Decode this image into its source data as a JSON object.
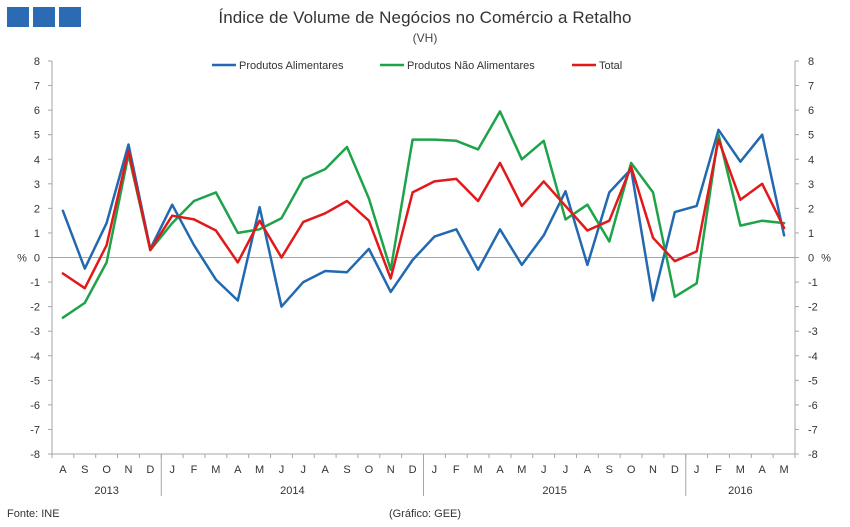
{
  "header": {
    "title": "Índice de Volume de Negócios no Comércio a Retalho",
    "subtitle": "(VH)"
  },
  "logo_colors": [
    "#2a6bb4",
    "#2a6bb4",
    "#2a6bb4"
  ],
  "footer": {
    "source": "Fonte: INE",
    "credit": "(Gráfico: GEE)"
  },
  "chart_data": {
    "type": "line",
    "title": "Índice de Volume de Negócios no Comércio a Retalho",
    "subtitle": "(VH)",
    "ylabel_left": "%",
    "ylabel_right": "%",
    "ylim": [
      -8,
      8
    ],
    "yticks": [
      -8,
      -7,
      -6,
      -5,
      -4,
      -3,
      -2,
      -1,
      0,
      1,
      2,
      3,
      4,
      5,
      6,
      7,
      8
    ],
    "grid": false,
    "legend_position": "top-center",
    "months": [
      "A",
      "S",
      "O",
      "N",
      "D",
      "J",
      "F",
      "M",
      "A",
      "M",
      "J",
      "J",
      "A",
      "S",
      "O",
      "N",
      "D",
      "J",
      "F",
      "M",
      "A",
      "M",
      "J",
      "J",
      "A",
      "S",
      "O",
      "N",
      "D",
      "J",
      "F",
      "M",
      "A",
      "M"
    ],
    "years": [
      {
        "label": "2013",
        "start": 0,
        "count": 5
      },
      {
        "label": "2014",
        "start": 5,
        "count": 12
      },
      {
        "label": "2015",
        "start": 17,
        "count": 12
      },
      {
        "label": "2016",
        "start": 29,
        "count": 5
      }
    ],
    "series": [
      {
        "name": "Produtos Alimentares",
        "color": "#2369b0",
        "values": [
          1.9,
          -0.45,
          1.4,
          4.6,
          0.35,
          2.15,
          0.5,
          -0.9,
          -1.75,
          2.05,
          -2.0,
          -1.0,
          -0.55,
          -0.6,
          0.35,
          -1.4,
          -0.1,
          0.85,
          1.15,
          -0.5,
          1.15,
          -0.3,
          0.9,
          2.7,
          -0.3,
          2.65,
          3.6,
          -1.75,
          1.85,
          2.1,
          5.2,
          3.9,
          5.0,
          0.9
        ]
      },
      {
        "name": "Produtos Não Alimentares",
        "color": "#1fa34a",
        "values": [
          -2.45,
          -1.85,
          -0.2,
          4.2,
          0.3,
          1.4,
          2.3,
          2.65,
          1.0,
          1.15,
          1.6,
          3.2,
          3.6,
          4.5,
          2.4,
          -0.5,
          4.8,
          4.8,
          4.75,
          4.4,
          5.95,
          4.0,
          4.75,
          1.55,
          2.15,
          0.65,
          3.85,
          2.65,
          -1.6,
          -1.05,
          5.0,
          1.3,
          1.5,
          1.4
        ]
      },
      {
        "name": "Total",
        "color": "#e2191b",
        "values": [
          -0.65,
          -1.25,
          0.5,
          4.35,
          0.3,
          1.7,
          1.55,
          1.1,
          -0.2,
          1.5,
          0.0,
          1.45,
          1.8,
          2.3,
          1.5,
          -0.85,
          2.65,
          3.1,
          3.2,
          2.3,
          3.85,
          2.1,
          3.1,
          2.1,
          1.1,
          1.5,
          3.7,
          0.8,
          -0.15,
          0.25,
          4.8,
          2.35,
          3.0,
          1.2
        ]
      }
    ]
  }
}
